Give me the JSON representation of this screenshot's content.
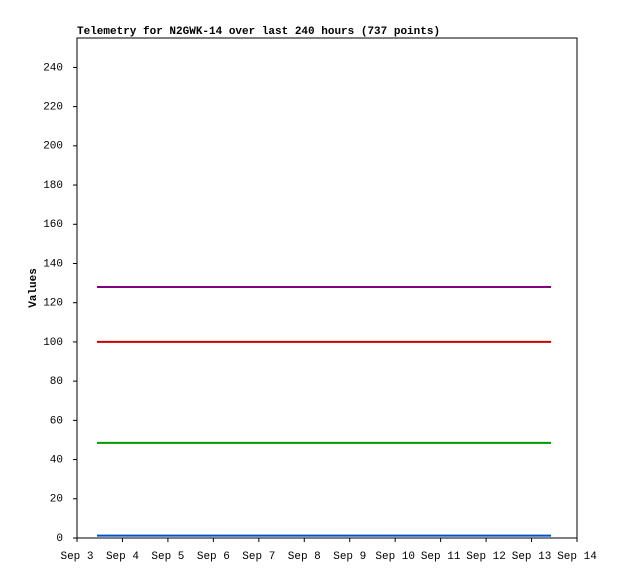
{
  "chart_data": {
    "type": "line",
    "title": "Telemetry for N2GWK-14 over last 240 hours (737 points)",
    "y_label": "Values",
    "x": [
      3.44,
      13.43
    ],
    "series": [
      {
        "color": "#800080",
        "values": [
          128,
          128
        ]
      },
      {
        "color": "#cc0000",
        "values": [
          100,
          100
        ]
      },
      {
        "color": "#009900",
        "values": [
          48.5,
          48.5
        ]
      },
      {
        "color": "#0050cc",
        "values": [
          1.2,
          1.2
        ]
      }
    ],
    "xlim": [
      3,
      14
    ],
    "xticks": [
      {
        "value": 3,
        "label": "Sep 3"
      },
      {
        "value": 4,
        "label": "Sep 4"
      },
      {
        "value": 5,
        "label": "Sep 5"
      },
      {
        "value": 6,
        "label": "Sep 6"
      },
      {
        "value": 7,
        "label": "Sep 7"
      },
      {
        "value": 8,
        "label": "Sep 8"
      },
      {
        "value": 9,
        "label": "Sep 9"
      },
      {
        "value": 10,
        "label": "Sep 10"
      },
      {
        "value": 11,
        "label": "Sep 11"
      },
      {
        "value": 12,
        "label": "Sep 12"
      },
      {
        "value": 13,
        "label": "Sep 13"
      },
      {
        "value": 14,
        "label": "Sep 14"
      }
    ],
    "ylim": [
      0,
      255
    ],
    "yticks": [
      0,
      20,
      40,
      60,
      80,
      100,
      120,
      140,
      160,
      180,
      200,
      220,
      240
    ],
    "grid": false
  }
}
